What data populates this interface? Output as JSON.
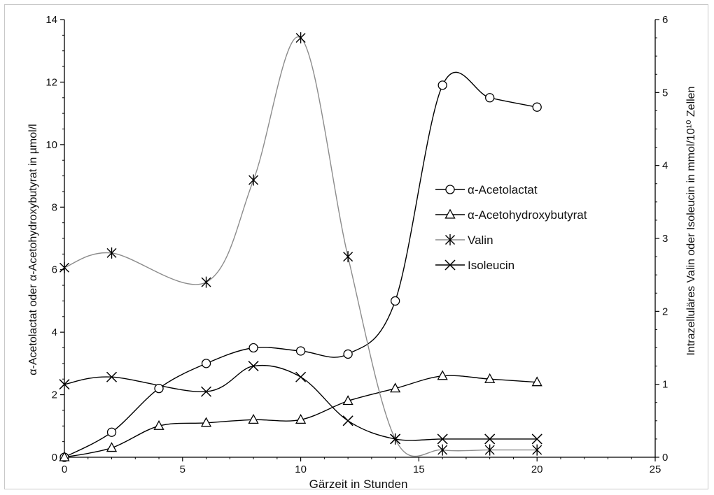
{
  "chart_data": {
    "type": "line",
    "xlabel": "Gärzeit in Stunden",
    "ylabel_left": "α-Acetolactat oder  α-Acetohydroxybutyrat in µmol/l",
    "ylabel_right": "Intrazelluläres Valin oder Isoleucin in mmol/10¹⁰ Zellen",
    "xlim": [
      0,
      25
    ],
    "xticks": [
      0,
      5,
      10,
      15,
      20,
      25
    ],
    "ylim_left": [
      0,
      14
    ],
    "yticks_left": [
      0,
      2,
      4,
      6,
      8,
      10,
      12,
      14
    ],
    "ylim_right": [
      0,
      6
    ],
    "yticks_right": [
      0,
      1,
      2,
      3,
      4,
      5,
      6
    ],
    "grid": false,
    "legend_position": "right-center",
    "series": [
      {
        "name": "α-Acetolactat",
        "axis": "left",
        "marker": "circle",
        "color": "#000000",
        "points": [
          [
            0,
            0
          ],
          [
            2,
            0.8
          ],
          [
            4,
            2.2
          ],
          [
            6,
            3.0
          ],
          [
            8,
            3.5
          ],
          [
            10,
            3.4
          ],
          [
            12,
            3.3
          ],
          [
            14,
            5.0
          ],
          [
            16,
            11.9
          ],
          [
            18,
            11.5
          ],
          [
            20,
            11.2
          ]
        ]
      },
      {
        "name": "α-Acetohydroxybutyrat",
        "axis": "left",
        "marker": "triangle",
        "color": "#000000",
        "points": [
          [
            0,
            0
          ],
          [
            2,
            0.3
          ],
          [
            4,
            1.0
          ],
          [
            6,
            1.1
          ],
          [
            8,
            1.2
          ],
          [
            10,
            1.2
          ],
          [
            12,
            1.8
          ],
          [
            14,
            2.2
          ],
          [
            16,
            2.6
          ],
          [
            18,
            2.5
          ],
          [
            20,
            2.4
          ]
        ]
      },
      {
        "name": "Valin",
        "axis": "right",
        "marker": "asterisk",
        "color": "#8c8c8c",
        "points": [
          [
            0,
            2.6
          ],
          [
            2,
            2.8
          ],
          [
            6,
            2.4
          ],
          [
            8,
            3.8
          ],
          [
            10,
            5.75
          ],
          [
            12,
            2.75
          ],
          [
            14,
            0.25
          ],
          [
            16,
            0.1
          ],
          [
            18,
            0.1
          ],
          [
            20,
            0.1
          ]
        ]
      },
      {
        "name": "Isoleucin",
        "axis": "right",
        "marker": "x",
        "color": "#000000",
        "points": [
          [
            0,
            1.0
          ],
          [
            2,
            1.1
          ],
          [
            6,
            0.9
          ],
          [
            8,
            1.25
          ],
          [
            10,
            1.1
          ],
          [
            12,
            0.5
          ],
          [
            14,
            0.25
          ],
          [
            16,
            0.25
          ],
          [
            18,
            0.25
          ],
          [
            20,
            0.25
          ]
        ]
      }
    ]
  }
}
